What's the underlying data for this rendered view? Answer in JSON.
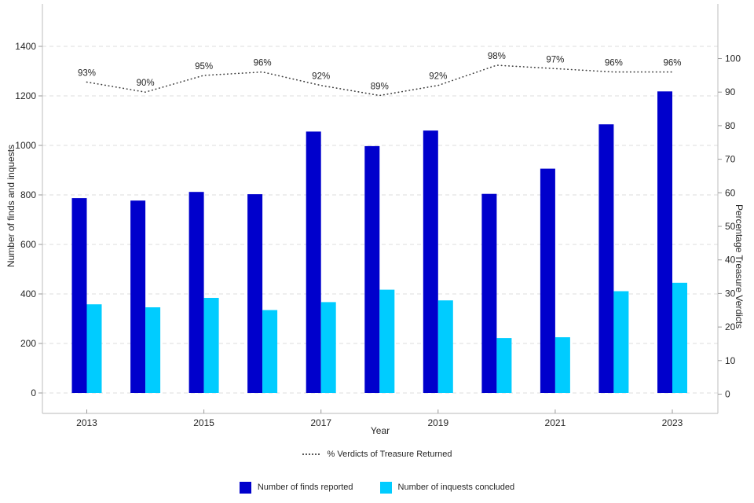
{
  "chart_data": {
    "type": "bar",
    "title": "",
    "categories": [
      "2013",
      "2014",
      "2015",
      "2016",
      "2017",
      "2018",
      "2019",
      "2020",
      "2021",
      "2022",
      "2023"
    ],
    "series": [
      {
        "name": "Number of finds reported",
        "color": "#0000CC",
        "axis": "left",
        "values": [
          787,
          777,
          812,
          803,
          1056,
          997,
          1060,
          804,
          906,
          1085,
          1218
        ]
      },
      {
        "name": "Number of inquests concluded",
        "color": "#00CCFF",
        "axis": "left",
        "values": [
          358,
          346,
          384,
          335,
          367,
          417,
          374,
          222,
          225,
          411,
          445
        ]
      }
    ],
    "line": {
      "name": "% Verdicts of Treasure Returned",
      "color": "#3F3F3F",
      "style": "dotted",
      "axis": "right",
      "values": [
        93,
        90,
        95,
        96,
        92,
        89,
        92,
        98,
        97,
        96,
        96
      ],
      "point_labels": [
        "93%",
        "90%",
        "95%",
        "96%",
        "92%",
        "89%",
        "92%",
        "98%",
        "97%",
        "96%",
        "96%"
      ]
    },
    "xlabel": "Year",
    "x_tick_labels": [
      "2013",
      "2015",
      "2017",
      "2019",
      "2021",
      "2023"
    ],
    "left_axis": {
      "label": "Number of finds and inquests",
      "min": 0,
      "max": 1400,
      "step": 200,
      "ticks": [
        "0",
        "200",
        "400",
        "600",
        "800",
        "1000",
        "1200",
        "1400"
      ]
    },
    "right_axis": {
      "label": "Percentage Treasure Verdicts",
      "min": 0,
      "max": 100,
      "step": 10,
      "ticks": [
        "0",
        "10",
        "20",
        "30",
        "40",
        "50",
        "60",
        "70",
        "80",
        "90",
        "100"
      ]
    },
    "grid": {
      "orientation": "horizontal",
      "style": "dashed",
      "color": "#DCDCDC"
    },
    "legend_position": "bottom",
    "colors": {
      "background": "#FFFFFF",
      "spine": "#C8C8C8",
      "tick": "#9A9A9A",
      "text": "#262626"
    }
  }
}
